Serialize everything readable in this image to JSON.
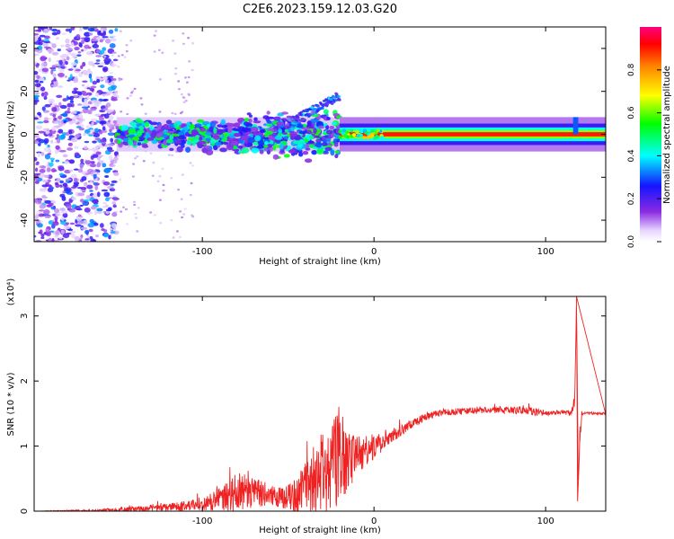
{
  "title": "C2E6.2023.159.12.03.G20",
  "chart_data": [
    {
      "type": "heatmap",
      "xlabel": "Height of straight line (km)",
      "ylabel": "Frequency (Hz)",
      "xlim": [
        -198,
        135
      ],
      "ylim": [
        -50,
        50
      ],
      "xticks": [
        -100,
        0,
        100
      ],
      "yticks": [
        -40,
        -20,
        0,
        20,
        40
      ],
      "colorbar": {
        "label": "Normalized spectral amplitude",
        "range": [
          0,
          1
        ],
        "ticks": [
          "0.0",
          "0.2",
          "0.4",
          "0.6",
          "0.8"
        ]
      },
      "features": [
        {
          "name": "broadband-noise",
          "x_range": [
            -198,
            -150
          ],
          "freq_range": [
            -50,
            50
          ],
          "amplitude": 0.25
        },
        {
          "name": "scattered-energy",
          "x_range": [
            -150,
            -20
          ],
          "freq_center": 0,
          "freq_halfwidth": 8,
          "amplitude": 0.45
        },
        {
          "name": "rising-streak",
          "x_range": [
            -50,
            -20
          ],
          "freq_range": [
            5,
            18
          ],
          "amplitude": 0.3
        },
        {
          "name": "narrow-tone",
          "x_range": [
            -20,
            135
          ],
          "freq_center": 0,
          "amplitude": 0.95
        }
      ]
    },
    {
      "type": "line",
      "xlabel": "Height of straight line (km)",
      "ylabel": "SNR (10 * v/v)",
      "yscale_label": "(x10⁴)",
      "xlim": [
        -198,
        135
      ],
      "ylim": [
        0,
        3.3
      ],
      "xticks": [
        -100,
        0,
        100
      ],
      "yticks": [
        0,
        1,
        2,
        3
      ],
      "series": [
        {
          "name": "SNR",
          "color": "#ee2222",
          "x": [
            -198,
            -160,
            -140,
            -120,
            -100,
            -90,
            -80,
            -70,
            -60,
            -50,
            -40,
            -30,
            -25,
            -20,
            -15,
            -10,
            -5,
            0,
            5,
            10,
            20,
            30,
            40,
            50,
            60,
            70,
            80,
            90,
            95,
            100,
            110,
            115,
            117,
            118,
            119,
            120,
            121,
            122,
            125,
            135
          ],
          "y": [
            0.0,
            0.01,
            0.03,
            0.06,
            0.1,
            0.18,
            0.28,
            0.3,
            0.25,
            0.2,
            0.3,
            0.5,
            0.7,
            0.9,
            0.8,
            0.85,
            0.9,
            1.0,
            1.05,
            1.15,
            1.3,
            1.45,
            1.52,
            1.53,
            1.55,
            1.55,
            1.55,
            1.55,
            1.52,
            1.5,
            1.52,
            1.5,
            1.7,
            3.25,
            0.4,
            1.1,
            1.5,
            1.5,
            1.5,
            1.5
          ],
          "noise": [
            0.0,
            0.02,
            0.04,
            0.06,
            0.1,
            0.18,
            0.3,
            0.25,
            0.15,
            0.2,
            0.45,
            0.55,
            0.7,
            0.8,
            0.5,
            0.3,
            0.25,
            0.2,
            0.15,
            0.1,
            0.08,
            0.06,
            0.05,
            0.05,
            0.05,
            0.05,
            0.05,
            0.08,
            0.06,
            0.03,
            0.03,
            0.04,
            0.1,
            0.0,
            0.0,
            0.1,
            0.03,
            0.02,
            0.02,
            0.02
          ]
        }
      ]
    }
  ]
}
